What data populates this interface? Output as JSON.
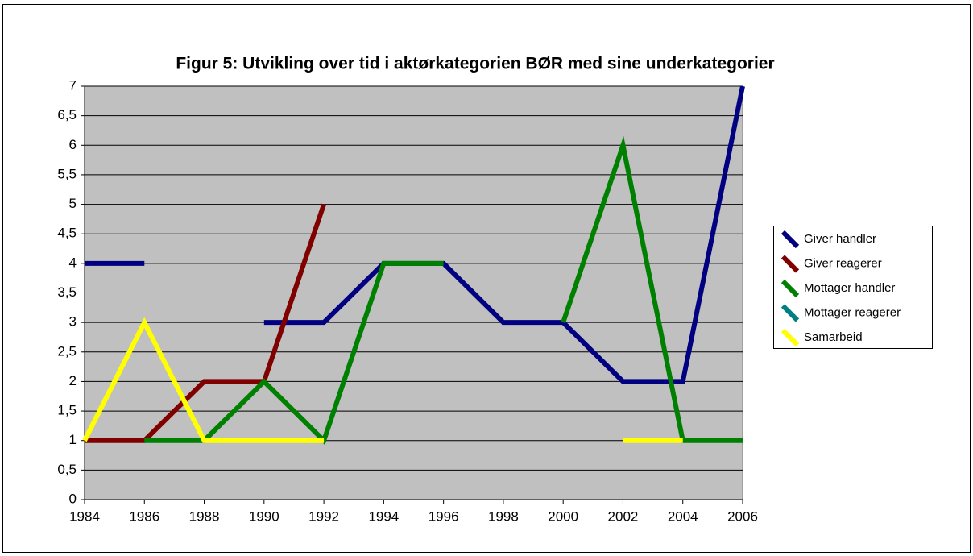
{
  "chart_data": {
    "type": "line",
    "title": "Figur 5: Utvikling over tid i aktørkategorien BØR med sine underkategorier",
    "categories": [
      "1984",
      "1986",
      "1988",
      "1990",
      "1992",
      "1994",
      "1996",
      "1998",
      "2000",
      "2002",
      "2004",
      "2006"
    ],
    "series": [
      {
        "name": "Giver handler",
        "color": "#000080",
        "values": [
          4,
          4,
          null,
          3,
          3,
          4,
          4,
          3,
          3,
          2,
          2,
          7
        ]
      },
      {
        "name": "Giver reagerer",
        "color": "#800000",
        "values": [
          1,
          1,
          2,
          2,
          5,
          null,
          null,
          null,
          null,
          null,
          null,
          null
        ]
      },
      {
        "name": "Mottager handler",
        "color": "#008000",
        "values": [
          null,
          1,
          1,
          2,
          1,
          4,
          4,
          null,
          3,
          6,
          1,
          1
        ]
      },
      {
        "name": "Mottager reagerer",
        "color": "#008080",
        "values": [
          null,
          null,
          null,
          null,
          null,
          null,
          null,
          null,
          null,
          null,
          null,
          null
        ]
      },
      {
        "name": "Samarbeid",
        "color": "#ffff00",
        "values": [
          1,
          3,
          1,
          1,
          1,
          null,
          null,
          null,
          null,
          1,
          1,
          null
        ]
      }
    ],
    "ylim": [
      0,
      7
    ],
    "yticks": [
      0,
      {
        "value": 0.5,
        "label": "0,5"
      },
      1,
      {
        "value": 1.5,
        "label": "1,5"
      },
      2,
      {
        "value": 2.5,
        "label": "2,5"
      },
      3,
      {
        "value": 3.5,
        "label": "3,5"
      },
      4,
      {
        "value": 4.5,
        "label": "4,5"
      },
      5,
      {
        "value": 5.5,
        "label": "5,5"
      },
      6,
      {
        "value": 6.5,
        "label": "6,5"
      },
      7
    ],
    "grid": true,
    "legend": "right"
  }
}
